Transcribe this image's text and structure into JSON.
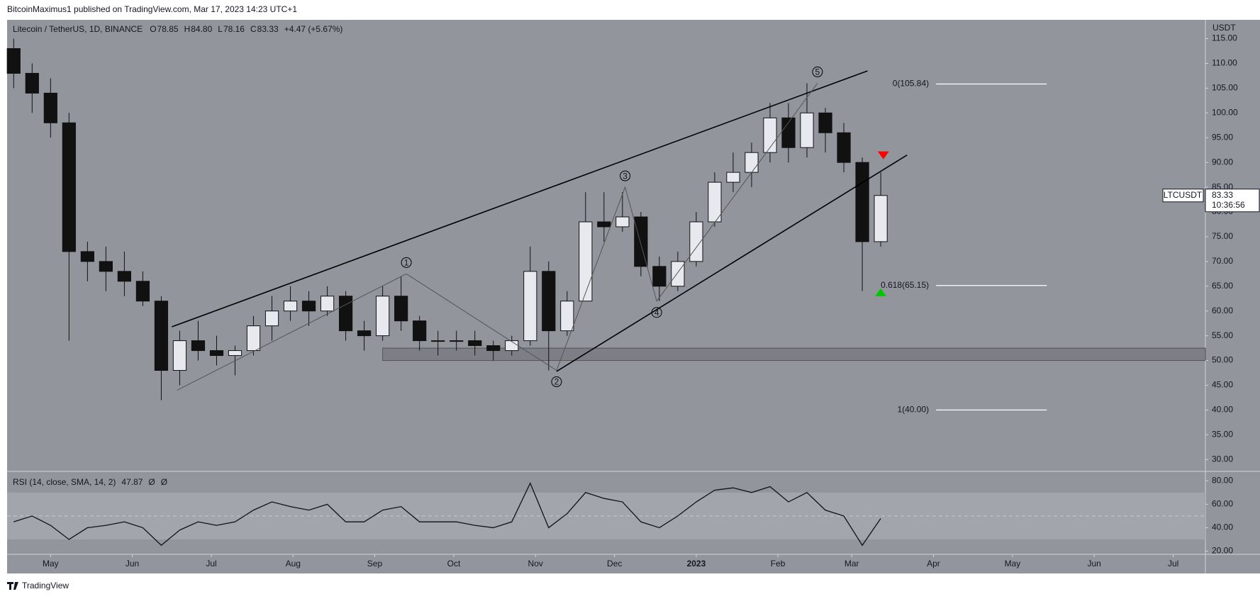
{
  "header": {
    "published": "BitcoinMaximus1 published on TradingView.com, Mar 17, 2023 14:23 UTC+1",
    "symbol": "Litecoin / TetherUS, 1D, BINANCE",
    "ohlc_labels": [
      "O",
      "H",
      "L",
      "C"
    ],
    "ohlc_values": [
      "78.85",
      "84.80",
      "78.16",
      "83.33"
    ],
    "change": "+4.47 (+5.67%)",
    "brand": "TradingView"
  },
  "chart_data": [
    {
      "type": "candlestick",
      "y_axis_label": "USDT",
      "x": [
        -14,
        -7,
        0,
        7,
        14,
        21,
        28,
        35,
        42,
        49,
        56,
        63,
        70,
        77,
        84,
        91,
        98,
        105,
        112,
        119,
        126,
        133,
        140,
        147,
        154,
        161,
        168,
        175,
        182,
        189,
        196,
        203,
        210,
        217,
        224,
        231,
        238,
        245,
        252,
        259,
        266,
        273,
        280,
        287,
        294,
        301,
        308,
        315
      ],
      "open": [
        113,
        108,
        104,
        98,
        72,
        70,
        68,
        66,
        62,
        48,
        54,
        52,
        51,
        52,
        57,
        60,
        62,
        60,
        63,
        56,
        55,
        63,
        58,
        54,
        54,
        54,
        53,
        52,
        54,
        68,
        56,
        62,
        78,
        77,
        79,
        69,
        65,
        70,
        78,
        86,
        88,
        92,
        99,
        93,
        100,
        96,
        90,
        74
      ],
      "high": [
        115,
        110,
        107,
        100,
        74,
        73,
        72,
        68,
        63,
        56,
        58,
        55,
        53,
        59,
        63,
        65,
        64,
        65,
        64,
        58,
        65,
        67,
        59,
        56,
        56,
        56,
        54,
        55,
        73,
        70,
        64,
        84,
        84,
        84,
        80,
        71,
        72,
        80,
        88,
        92,
        94,
        102,
        102,
        106,
        101,
        98,
        91,
        88
      ],
      "low": [
        105,
        100,
        95,
        54,
        66,
        64,
        63,
        61,
        42,
        45,
        50,
        49,
        47,
        51,
        54,
        58,
        57,
        59,
        54,
        52,
        54,
        56,
        52,
        51,
        52,
        51,
        50,
        51,
        53,
        48,
        55,
        62,
        74,
        76,
        67,
        62,
        64,
        69,
        77,
        84,
        85,
        90,
        90,
        91,
        92,
        88,
        64,
        73
      ],
      "close": [
        108,
        104,
        98,
        72,
        70,
        68,
        66,
        62,
        48,
        54,
        52,
        51,
        52,
        57,
        60,
        62,
        60,
        63,
        56,
        55,
        63,
        58,
        54,
        54,
        54,
        53,
        52,
        54,
        68,
        56,
        62,
        78,
        77,
        79,
        69,
        65,
        70,
        78,
        86,
        88,
        92,
        99,
        93,
        100,
        96,
        90,
        74,
        83.33
      ],
      "up_color": "#e8e9ee",
      "down_color": "#111111",
      "xlim": [
        -16.5,
        438.2
      ],
      "ylim": [
        27.6,
        118.8
      ],
      "xticks": [
        {
          "value": 0,
          "label": "May"
        },
        {
          "value": 31,
          "label": "Jun"
        },
        {
          "value": 61,
          "label": "Jul"
        },
        {
          "value": 92,
          "label": "Aug"
        },
        {
          "value": 123,
          "label": "Sep"
        },
        {
          "value": 153,
          "label": "Oct"
        },
        {
          "value": 184,
          "label": "Nov"
        },
        {
          "value": 214,
          "label": "Dec"
        },
        {
          "value": 245,
          "label": "2023"
        },
        {
          "value": 276,
          "label": "Feb"
        },
        {
          "value": 304,
          "label": "Mar"
        },
        {
          "value": 335,
          "label": "Apr"
        },
        {
          "value": 365,
          "label": "May"
        },
        {
          "value": 396,
          "label": "Jun"
        },
        {
          "value": 426,
          "label": "Jul"
        }
      ],
      "yticks": [
        {
          "value": 30,
          "label": "30.00"
        },
        {
          "value": 35,
          "label": "35.00"
        },
        {
          "value": 40,
          "label": "40.00"
        },
        {
          "value": 45,
          "label": "45.00"
        },
        {
          "value": 50,
          "label": "50.00"
        },
        {
          "value": 55,
          "label": "55.00"
        },
        {
          "value": 60,
          "label": "60.00"
        },
        {
          "value": 65,
          "label": "65.00"
        },
        {
          "value": 70,
          "label": "70.00"
        },
        {
          "value": 75,
          "label": "75.00"
        },
        {
          "value": 80,
          "label": "80.00"
        },
        {
          "value": 85,
          "label": "85.00"
        },
        {
          "value": 90,
          "label": "90.00"
        },
        {
          "value": 95,
          "label": "95.00"
        },
        {
          "value": 100,
          "label": "100.00"
        },
        {
          "value": 105,
          "label": "105.00"
        },
        {
          "value": 110,
          "label": "110.00"
        },
        {
          "value": 115,
          "label": "115.00"
        }
      ],
      "fib_levels": [
        {
          "value": 105.84,
          "label": "0(105.84)"
        },
        {
          "value": 65.15,
          "label": "0.618(65.15)"
        },
        {
          "value": 40,
          "label": "1(40.00)"
        }
      ],
      "fib_x": [
        336,
        378
      ],
      "trendlines": [
        {
          "x": [
            46,
            310
          ],
          "y": [
            56.8,
            108.5
          ]
        },
        {
          "x": [
            192,
            325
          ],
          "y": [
            47.8,
            91.5
          ]
        }
      ],
      "support_zone": {
        "x_start": 126,
        "y": [
          50,
          52.5
        ]
      },
      "wave": {
        "labels": [
          null,
          "1",
          "2",
          "3",
          "4",
          "5"
        ],
        "x": [
          48,
          135,
          192,
          218,
          230,
          291
        ],
        "y": [
          44,
          67.5,
          48,
          85,
          62,
          106
        ]
      },
      "markers": [
        {
          "x": 316,
          "y": 91.5,
          "color": "#ff0000",
          "shape": "down"
        },
        {
          "x": 315,
          "y": 63.7,
          "color": "#00c800",
          "shape": "up"
        }
      ],
      "last_price": {
        "name": "LTCUSDT",
        "value": 83.33,
        "countdown": "10:36:56"
      }
    },
    {
      "type": "line",
      "title": "RSI (14, close, SMA, 14, 2)",
      "extras": [
        "Ø",
        "Ø"
      ],
      "color": "#111111",
      "x": [
        -14,
        -7,
        0,
        7,
        14,
        21,
        28,
        35,
        42,
        49,
        56,
        63,
        70,
        77,
        84,
        91,
        98,
        105,
        112,
        119,
        126,
        133,
        140,
        147,
        154,
        161,
        168,
        175,
        182,
        189,
        196,
        203,
        210,
        217,
        224,
        231,
        238,
        245,
        252,
        259,
        266,
        273,
        280,
        287,
        294,
        301,
        308,
        315
      ],
      "values": [
        45,
        50,
        42,
        30,
        40,
        42,
        45,
        40,
        25,
        38,
        45,
        42,
        45,
        55,
        62,
        58,
        55,
        60,
        45,
        45,
        55,
        58,
        45,
        45,
        45,
        42,
        40,
        45,
        78,
        40,
        52,
        70,
        65,
        62,
        45,
        40,
        50,
        62,
        72,
        74,
        70,
        75,
        62,
        70,
        55,
        50,
        25,
        47.87
      ],
      "xlim": [
        -16.5,
        438.2
      ],
      "ylim": [
        17.3,
        86.8
      ],
      "band": [
        30,
        70
      ],
      "midline": 50,
      "yticks": [
        {
          "value": 20,
          "label": "20.00"
        },
        {
          "value": 40,
          "label": "40.00"
        },
        {
          "value": 60,
          "label": "60.00"
        },
        {
          "value": 80,
          "label": "80.00"
        }
      ]
    }
  ]
}
